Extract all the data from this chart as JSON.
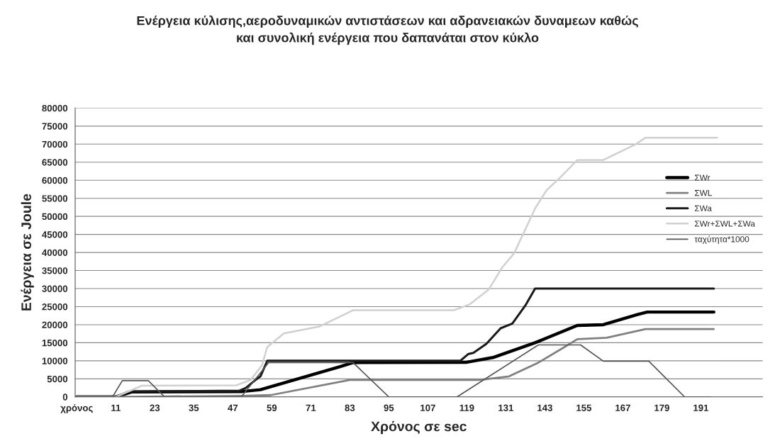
{
  "chart_data": {
    "type": "line",
    "title": "Ενέργεια κύλισης,αεροδυναμικών αντιστάσεων και αδρανειακών δυναμεων καθώς\nκαι συνολική ενέργεια που δαπανάται στον κύκλο",
    "xlabel": "Χρόνος σε sec",
    "ylabel": "Ενέργεια σε Joule",
    "xlim": [
      -1.5,
      210
    ],
    "ylim": [
      0,
      80000
    ],
    "xticks": [
      {
        "value": -1,
        "label": "χρόνος"
      },
      11,
      23,
      35,
      47,
      59,
      71,
      83,
      95,
      107,
      119,
      131,
      143,
      155,
      167,
      179,
      191
    ],
    "yticks": [
      0,
      5000,
      10000,
      15000,
      20000,
      25000,
      30000,
      35000,
      40000,
      45000,
      50000,
      55000,
      60000,
      65000,
      70000,
      75000,
      80000
    ],
    "grid": "y",
    "legend": "right",
    "marker": "none",
    "line_style": "solid",
    "series": [
      {
        "name": "ΣWr",
        "color": "#000000",
        "x": [
          -1,
          11,
          16,
          50,
          55.5,
          80,
          84,
          119,
          127,
          140,
          153,
          161,
          171.5,
          174.5,
          195
        ],
        "values": [
          0,
          0,
          1400,
          1500,
          2000,
          8400,
          9500,
          9600,
          10900,
          15000,
          19800,
          20000,
          22800,
          23500,
          23500
        ]
      },
      {
        "name": "ΣWL",
        "color": "#808080",
        "x": [
          -1,
          11,
          50,
          58.7,
          83,
          123,
          132,
          141,
          148.5,
          153,
          162,
          174,
          195
        ],
        "values": [
          0,
          0,
          300,
          500,
          4700,
          4700,
          5700,
          9500,
          13500,
          16000,
          16400,
          18800,
          18800
        ]
      },
      {
        "name": "ΣWa",
        "color": "#1a1a1a",
        "x": [
          -1,
          11,
          15,
          49,
          51,
          54,
          55.5,
          57.6,
          117,
          119.5,
          121,
          125,
          129.4,
          133,
          137,
          140,
          195
        ],
        "values": [
          0,
          0,
          1500,
          1700,
          2500,
          4700,
          5700,
          10000,
          10000,
          11900,
          12200,
          14700,
          19000,
          20300,
          25300,
          30000,
          30000
        ]
      },
      {
        "name": "ΣWr+ΣWL+ΣWa",
        "color": "#d0d0d0",
        "x": [
          -1,
          11,
          19,
          48,
          52.5,
          56,
          57.6,
          62.7,
          73.7,
          84,
          115,
          119.8,
          125.7,
          130,
          133.5,
          136.8,
          140,
          143.5,
          148,
          153,
          161,
          171,
          174,
          196
        ],
        "values": [
          0,
          0,
          3100,
          3200,
          4700,
          8800,
          13800,
          17600,
          19500,
          24000,
          24000,
          25600,
          29700,
          36000,
          39700,
          46000,
          52200,
          57200,
          61000,
          65600,
          65600,
          70000,
          71800,
          71800
        ]
      },
      {
        "name": "ταχύτητα*1000",
        "color": "#555555",
        "x": [
          -1,
          10,
          13,
          21,
          26,
          49.6,
          58,
          84,
          95,
          116,
          141,
          154,
          161,
          175,
          186,
          194
        ],
        "values": [
          0,
          0,
          4500,
          4500,
          0,
          0,
          9500,
          9500,
          0,
          0,
          14400,
          14400,
          9900,
          9900,
          0,
          0
        ]
      }
    ]
  }
}
